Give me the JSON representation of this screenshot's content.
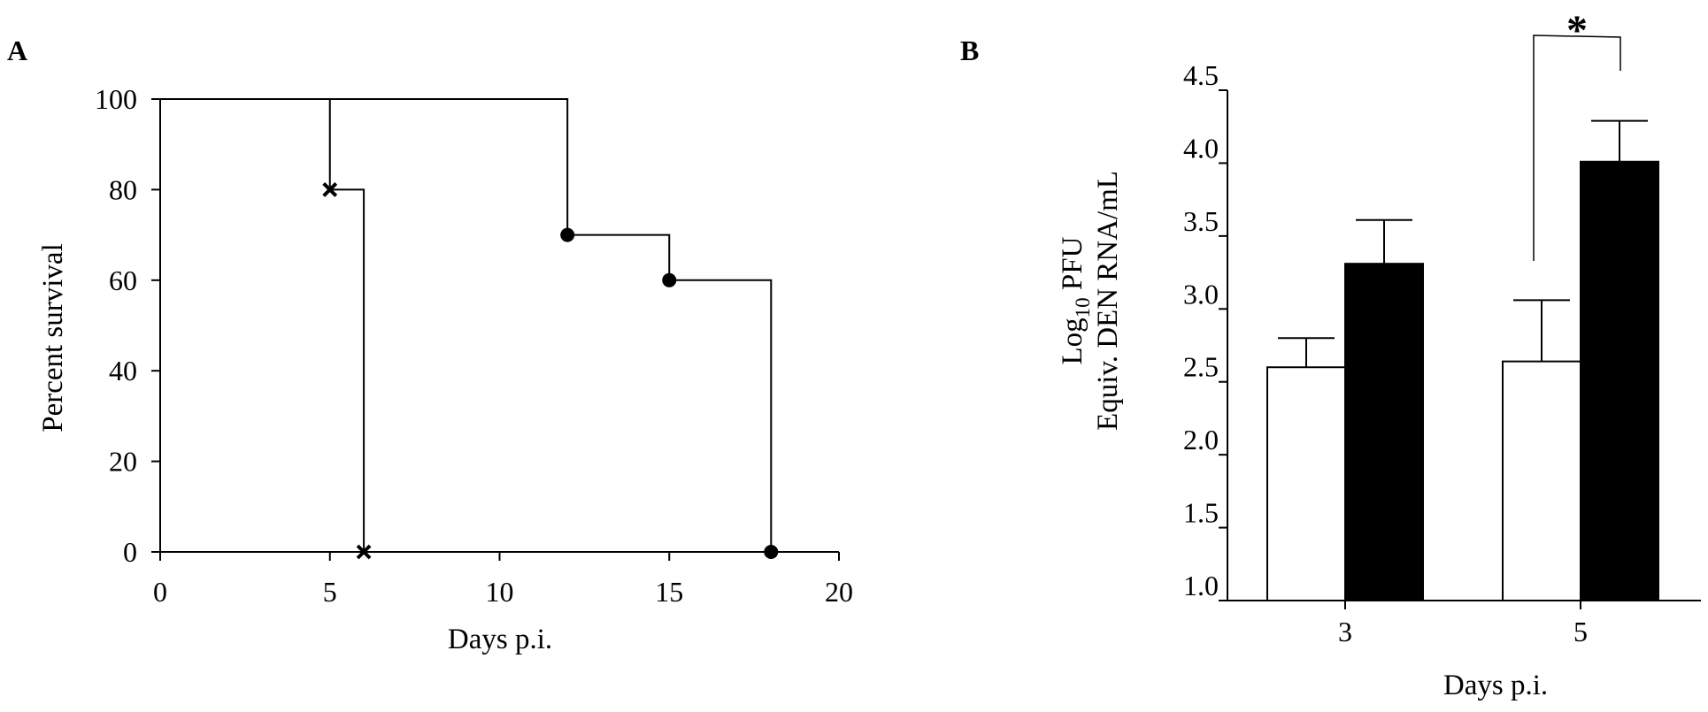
{
  "chart_data": [
    {
      "panel": "A",
      "type": "line",
      "step": true,
      "xlabel": "Days p.i.",
      "ylabel": "Percent survival",
      "xlim": [
        0,
        20
      ],
      "ylim": [
        0,
        100
      ],
      "xticks": [
        0,
        5,
        10,
        15,
        20
      ],
      "yticks": [
        0,
        20,
        40,
        60,
        80,
        100
      ],
      "grid": false,
      "series": [
        {
          "marker": "x",
          "x": [
            0,
            5,
            6
          ],
          "y": [
            100,
            80,
            0
          ],
          "markers_at": [
            [
              5,
              80
            ],
            [
              6,
              0
            ]
          ]
        },
        {
          "marker": "filled-circle",
          "x": [
            0,
            12,
            15,
            18
          ],
          "y": [
            100,
            70,
            60,
            0
          ],
          "markers_at": [
            [
              12,
              70
            ],
            [
              15,
              60
            ],
            [
              18,
              0
            ]
          ]
        }
      ]
    },
    {
      "panel": "B",
      "type": "bar",
      "xlabel": "Days p.i.",
      "ylabel_main": "Log",
      "ylabel_sub": "10",
      "ylabel_rest": " PFU",
      "ylabel_line2": "Equiv. DEN RNA/mL",
      "ylim": [
        1.0,
        4.5
      ],
      "yticks": [
        "1.0",
        "1.5",
        "2.0",
        "2.5",
        "3.0",
        "3.5",
        "4.0",
        "4.5"
      ],
      "categories": [
        "3",
        "5"
      ],
      "grid": false,
      "series": [
        {
          "fill": "#ffffff",
          "values": [
            2.6,
            2.64
          ],
          "errors": [
            0.2,
            0.42
          ]
        },
        {
          "fill": "#000000",
          "values": [
            3.31,
            4.01
          ],
          "errors": [
            0.3,
            0.28
          ]
        }
      ],
      "annotation": {
        "text": "*",
        "between_category": "5"
      }
    }
  ]
}
